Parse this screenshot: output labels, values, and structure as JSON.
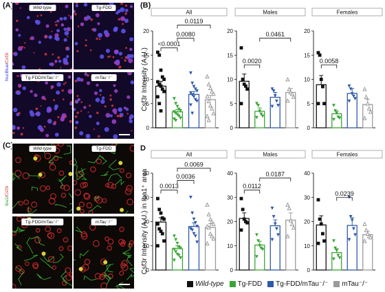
{
  "panels": {
    "A": "(A)",
    "B": "(B)",
    "C": "(C)",
    "D": "D"
  },
  "micrograph_labels": {
    "wild_type": "Wild-type",
    "tg_fdd": "Tg-FDD",
    "tg_fdd_mtau": "Tg-FDD/mTau⁻/⁻",
    "mtau": "mTau⁻/⁻"
  },
  "stain_labels": {
    "A": [
      "Nuc",
      "Blue",
      "/",
      "Csf3r"
    ],
    "C": [
      "Iba1",
      "/",
      "Csf3r"
    ]
  },
  "colors": {
    "wild_type": "#111111",
    "tg_fdd": "#3aa536",
    "tg_fdd_mtau": "#2e5aa8",
    "mtau": "#9a9a9a",
    "nuc": "#3b3bd9",
    "csf3r": "#d42a2a",
    "iba1": "#3aa536"
  },
  "legend": [
    {
      "key": "wild_type",
      "label": "Wild-type",
      "italic": true
    },
    {
      "key": "tg_fdd",
      "label": "Tg-FDD",
      "italic": false
    },
    {
      "key": "tg_fdd_mtau",
      "label": "Tg-FDD/mTau⁻/⁻",
      "italic": false
    },
    {
      "key": "mtau",
      "label": "mTau⁻/⁻",
      "italic": false
    }
  ],
  "chart_data": [
    {
      "type": "bar",
      "panel": "B",
      "ylabel": "Csf3r Intensity (A.U.)",
      "ylim": [
        0,
        20
      ],
      "yticks": [
        0,
        5,
        10,
        15,
        20
      ],
      "subplots": [
        {
          "title": "All",
          "means": [
            8.6,
            3.3,
            6.9,
            5.8
          ],
          "errors": [
            1.0,
            0.45,
            0.6,
            0.9
          ],
          "points": [
            [
              15.6,
              15.0,
              11.9,
              10.5,
              10.0,
              9.5,
              9.0,
              8.6,
              8.0,
              7.5,
              6.4,
              5.0,
              3.5
            ],
            [
              6.0,
              5.0,
              4.4,
              3.8,
              3.5,
              3.3,
              3.0,
              2.7,
              2.4,
              2.0,
              1.8,
              1.5
            ],
            [
              11.3,
              9.2,
              8.5,
              8.0,
              7.6,
              7.2,
              6.8,
              6.4,
              5.8,
              5.5,
              4.7,
              3.0
            ],
            [
              10.6,
              9.0,
              8.2,
              7.5,
              7.0,
              6.5,
              5.5,
              4.6,
              4.0,
              3.0,
              2.4,
              1.6
            ]
          ],
          "comparisons": [
            {
              "from": 0,
              "to": 1,
              "label": "<0.0001",
              "y": 16.5
            },
            {
              "from": 1,
              "to": 2,
              "label": "0.0080",
              "y": 18.5
            },
            {
              "from": 1,
              "to": 3,
              "label": "0.0119",
              "y": 21.2
            }
          ]
        },
        {
          "title": "Males",
          "means": [
            9.6,
            3.4,
            6.3,
            7.3
          ],
          "errors": [
            1.5,
            0.7,
            1.0,
            0.8
          ],
          "points": [
            [
              16.5,
              10.0,
              9.0,
              8.6,
              8.0,
              5.0
            ],
            [
              5.0,
              4.6,
              3.4,
              2.8,
              2.4,
              2.1
            ],
            [
              8.0,
              7.6,
              6.6,
              5.5,
              4.6,
              4.4
            ],
            [
              10.0,
              8.0,
              7.3,
              7.0,
              6.4,
              5.6
            ]
          ],
          "comparisons": [
            {
              "from": 0,
              "to": 1,
              "label": "0.0020",
              "y": 13.0
            },
            {
              "from": 1,
              "to": 3,
              "label": "0.0461",
              "y": 18.5
            }
          ]
        },
        {
          "title": "Females",
          "means": [
            8.9,
            2.9,
            7.1,
            4.8
          ],
          "errors": [
            1.9,
            0.6,
            1.0,
            1.1
          ],
          "points": [
            [
              15.5,
              15.0,
              10.0,
              8.5,
              5.0,
              5.0
            ],
            [
              4.6,
              3.5,
              3.0,
              2.2,
              2.0,
              1.7
            ],
            [
              8.6,
              8.0,
              7.0,
              6.5,
              6.0,
              5.5
            ],
            [
              8.0,
              6.4,
              5.0,
              4.0,
              3.3,
              2.0
            ]
          ],
          "comparisons": [
            {
              "from": 0,
              "to": 1,
              "label": "0.0058",
              "y": 13.0
            }
          ]
        }
      ]
    },
    {
      "type": "bar",
      "panel": "D",
      "ylabel": "Csf3r Intensity (A.U.) in Iba1⁺ area",
      "ylim": [
        0,
        40
      ],
      "yticks": [
        0,
        10,
        20,
        30,
        40
      ],
      "subplots": [
        {
          "title": "All",
          "means": [
            19.8,
            8.8,
            18.0,
            17.6
          ],
          "errors": [
            1.8,
            1.2,
            1.5,
            1.5
          ],
          "points": [
            [
              29.5,
              25.0,
              23.5,
              21.5,
              21.0,
              19.0,
              17.0,
              16.0,
              15.0,
              12.0,
              10.0
            ],
            [
              14.0,
              12.5,
              11.0,
              9.5,
              9.0,
              8.5,
              7.5,
              6.5,
              6.0,
              5.0,
              4.0
            ],
            [
              30.0,
              23.5,
              21.0,
              19.5,
              18.0,
              17.0,
              16.5,
              15.0,
              14.0,
              11.5
            ],
            [
              27.0,
              23.0,
              21.0,
              20.0,
              19.0,
              18.0,
              17.5,
              15.0,
              14.0,
              13.0,
              11.0
            ]
          ],
          "comparisons": [
            {
              "from": 0,
              "to": 1,
              "label": "0.0013",
              "y": 33.0
            },
            {
              "from": 1,
              "to": 2,
              "label": "0.0036",
              "y": 37.0
            },
            {
              "from": 1,
              "to": 3,
              "label": "0.0069",
              "y": 42.0
            }
          ]
        },
        {
          "title": "Males",
          "means": [
            21.3,
            10.3,
            18.3,
            20.6
          ],
          "errors": [
            2.3,
            1.6,
            2.4,
            3.0
          ],
          "points": [
            [
              29.5,
              25.0,
              21.0,
              20.0,
              19.5,
              16.5
            ],
            [
              14.5,
              12.0,
              10.0,
              9.0,
              8.5,
              5.5
            ],
            [
              25.5,
              22.0,
              19.0,
              17.0,
              14.5,
              12.5
            ],
            [
              27.0,
              25.5,
              20.5,
              19.0,
              17.5,
              14.0
            ]
          ],
          "comparisons": [
            {
              "from": 0,
              "to": 1,
              "label": "0.0112",
              "y": 33.0
            },
            {
              "from": 1,
              "to": 3,
              "label": "0.0187",
              "y": 38.0
            }
          ]
        },
        {
          "title": "Females",
          "means": [
            18.6,
            7.2,
            18.4,
            14.6
          ],
          "errors": [
            3.8,
            1.6,
            3.2,
            1.5
          ],
          "points": [
            [
              29.0,
              21.0,
              19.0,
              15.0,
              12.0,
              11.0
            ],
            [
              12.0,
              9.0,
              8.0,
              6.0,
              5.0,
              4.5
            ],
            [
              30.0,
              22.0,
              20.5,
              17.0,
              14.5,
              12.5
            ],
            [
              19.0,
              16.5,
              15.0,
              14.0,
              13.5,
              12.0
            ]
          ],
          "comparisons": [
            {
              "from": 1,
              "to": 2,
              "label": "0.0239",
              "y": 30.0
            }
          ]
        }
      ]
    }
  ]
}
